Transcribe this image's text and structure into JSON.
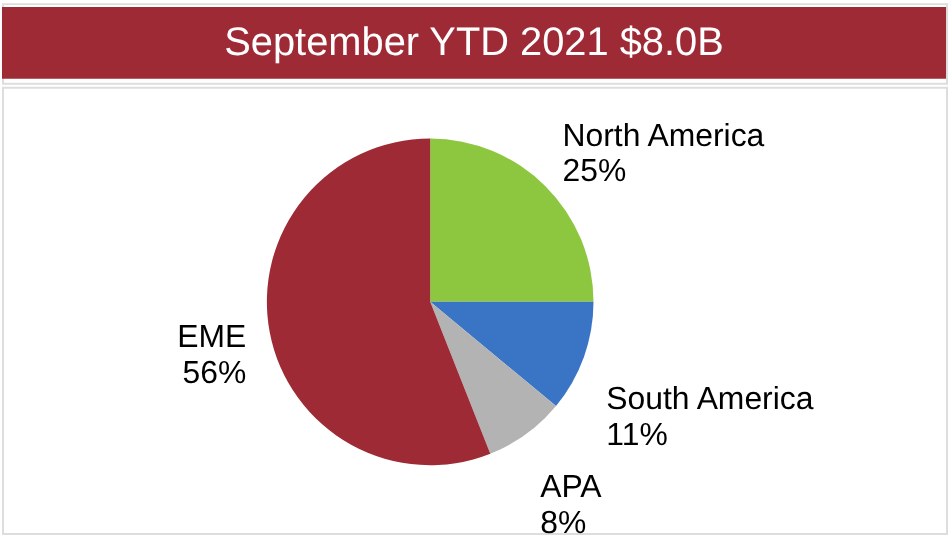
{
  "chart_data": {
    "type": "pie",
    "title": "September YTD 2021 $8.0B",
    "categories": [
      "North America",
      "South America",
      "APA",
      "EME"
    ],
    "values": [
      25,
      11,
      8,
      56
    ],
    "value_labels": [
      "25%",
      "11%",
      "8%",
      "56%"
    ],
    "colors": [
      "#8dc63f",
      "#3a74c4",
      "#b3b3b3",
      "#9e2a36"
    ],
    "legend": false
  }
}
